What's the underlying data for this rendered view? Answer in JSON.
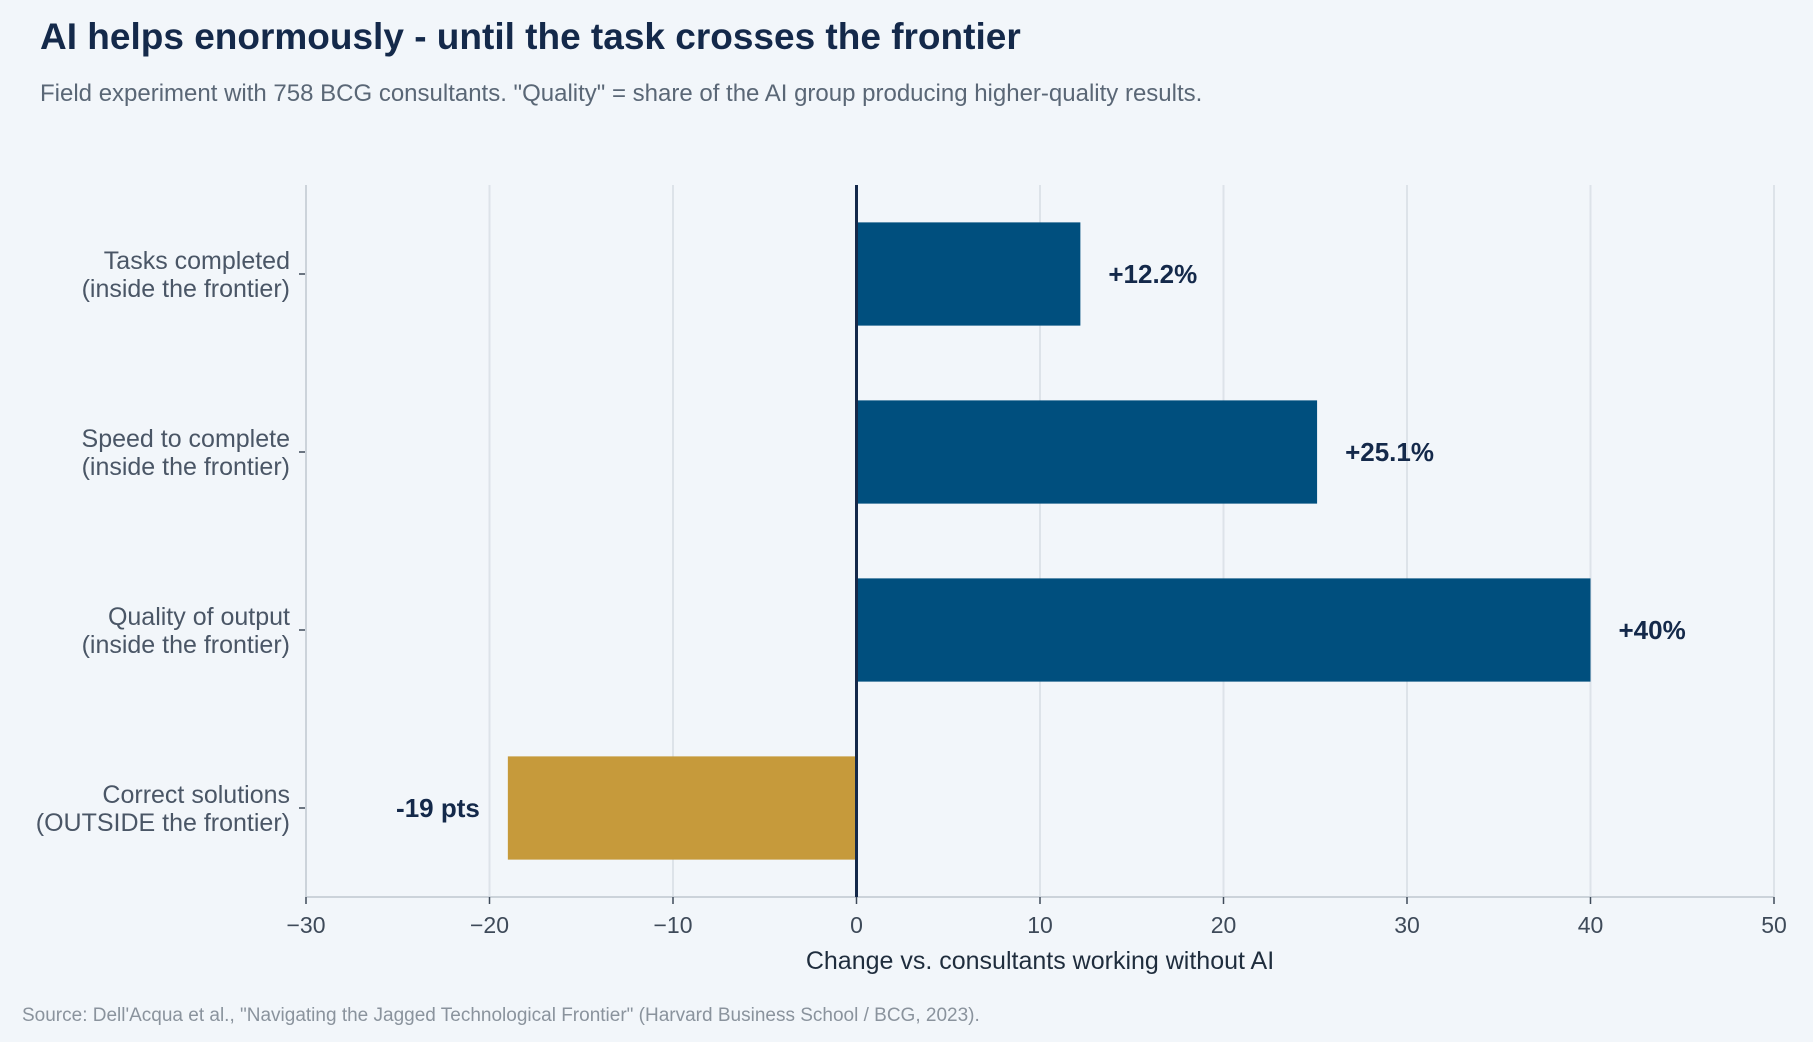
{
  "title": "AI helps enormously - until the task crosses the frontier",
  "subtitle": "Field experiment with 758 BCG consultants. \"Quality\" = share of the AI group producing higher-quality results.",
  "source": "Source: Dell'Acqua et al., \"Navigating the Jagged Technological Frontier\" (Harvard Business School / BCG, 2023).",
  "colors": {
    "positive_bar": "#004f7e",
    "negative_bar": "#c69a3b",
    "zero_line": "#14294a",
    "grid": "#dde3e9"
  },
  "chart_data": {
    "type": "bar",
    "orientation": "horizontal",
    "categories": [
      [
        "Tasks completed",
        "(inside the frontier)"
      ],
      [
        "Speed to complete",
        "(inside the frontier)"
      ],
      [
        "Quality of output",
        "(inside the frontier)"
      ],
      [
        "Correct solutions",
        "(OUTSIDE the frontier)"
      ]
    ],
    "values": [
      12.2,
      25.1,
      40,
      -19
    ],
    "data_labels": [
      "+12.2%",
      "+25.1%",
      "+40%",
      "-19 pts"
    ],
    "xlabel": "Change vs. consultants working without AI",
    "xlim": [
      -30,
      50
    ],
    "xticks": [
      -30,
      -20,
      -10,
      0,
      10,
      20,
      30,
      40,
      50
    ],
    "xtick_labels": [
      "−30",
      "−20",
      "−10",
      "0",
      "10",
      "20",
      "30",
      "40",
      "50"
    ],
    "grid": true,
    "legend": false
  }
}
